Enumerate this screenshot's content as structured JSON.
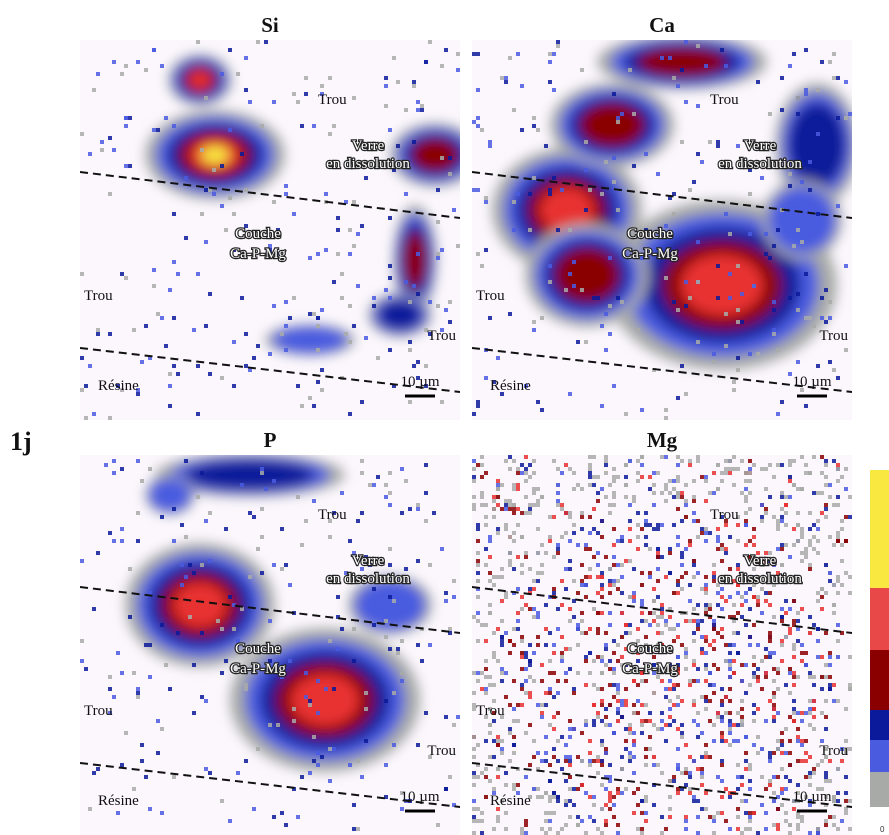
{
  "figure_label": "1j",
  "panels": [
    {
      "title": "Si",
      "labels": {
        "top": "Trou",
        "verre": [
          "Verre",
          "en dissolution"
        ],
        "couche": [
          "Couche",
          "Ca-P-Mg"
        ],
        "left": "Trou",
        "right": "Trou",
        "resine": "Résine",
        "scale": "10 µm"
      }
    },
    {
      "title": "Ca",
      "labels": {
        "top": "Trou",
        "verre": [
          "Verre",
          "en dissolution"
        ],
        "couche": [
          "Couche",
          "Ca-P-Mg"
        ],
        "left": "Trou",
        "right": "Trou",
        "resine": "Résine",
        "scale": "10 µm"
      }
    },
    {
      "title": "P",
      "labels": {
        "top": "Trou",
        "verre": [
          "Verre",
          "en dissolution"
        ],
        "couche": [
          "Couche",
          "Ca-P-Mg"
        ],
        "left": "Trou",
        "right": "Trou",
        "resine": "Résine",
        "scale": "10 µm"
      }
    },
    {
      "title": "Mg",
      "labels": {
        "top": "Trou",
        "verre": [
          "Verre",
          "en dissolution"
        ],
        "couche": [
          "Couche",
          "Ca-P-Mg"
        ],
        "left": "Trou",
        "right": "Trou",
        "resine": "Résine",
        "scale": "10 µm"
      }
    }
  ],
  "colorbar_min": "0"
}
